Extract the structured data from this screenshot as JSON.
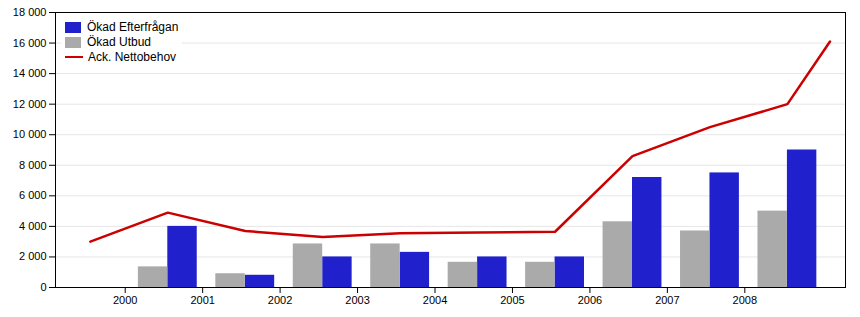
{
  "chart_data": {
    "type": "bar",
    "x": [
      2000,
      2001,
      2002,
      2003,
      2004,
      2005,
      2006,
      2007,
      2008
    ],
    "series": [
      {
        "name": "Ökad Efterfrågan",
        "color": "#2020cc",
        "values": [
          4000,
          800,
          2000,
          2300,
          2000,
          2000,
          7200,
          7500,
          9000
        ]
      },
      {
        "name": "Ökad Utbud",
        "color": "#aaaaaa",
        "values": [
          1350,
          900,
          2850,
          2850,
          1650,
          1650,
          4300,
          3700,
          5000
        ]
      },
      {
        "name": "Ack. Nettobehov",
        "type": "line",
        "color": "#cc0000",
        "x": [
          1999.55,
          2000.55,
          2001.55,
          2002.55,
          2003.55,
          2004.55,
          2005.55,
          2006.55,
          2007.55,
          2008.55,
          2009.1
        ],
        "values": [
          3000,
          4900,
          3700,
          3300,
          3550,
          3600,
          3650,
          8600,
          10500,
          12000,
          16100
        ]
      }
    ],
    "xlim": [
      1999.1,
      2009.3
    ],
    "xticks": [
      2000,
      2001,
      2002,
      2003,
      2004,
      2005,
      2006,
      2007,
      2008
    ],
    "ylim": [
      0,
      18000
    ],
    "yticks": [
      0,
      {
        "value": 2000,
        "label": "2 000"
      },
      {
        "value": 4000,
        "label": "4 000"
      },
      {
        "value": 6000,
        "label": "6 000"
      },
      {
        "value": 8000,
        "label": "8 000"
      },
      {
        "value": 10000,
        "label": "10 000"
      },
      {
        "value": 12000,
        "label": "12 000"
      },
      {
        "value": 14000,
        "label": "14 000"
      },
      {
        "value": 16000,
        "label": "16 000"
      },
      {
        "value": 18000,
        "label": "18 000"
      }
    ],
    "grid": true,
    "legend": "upper left"
  }
}
